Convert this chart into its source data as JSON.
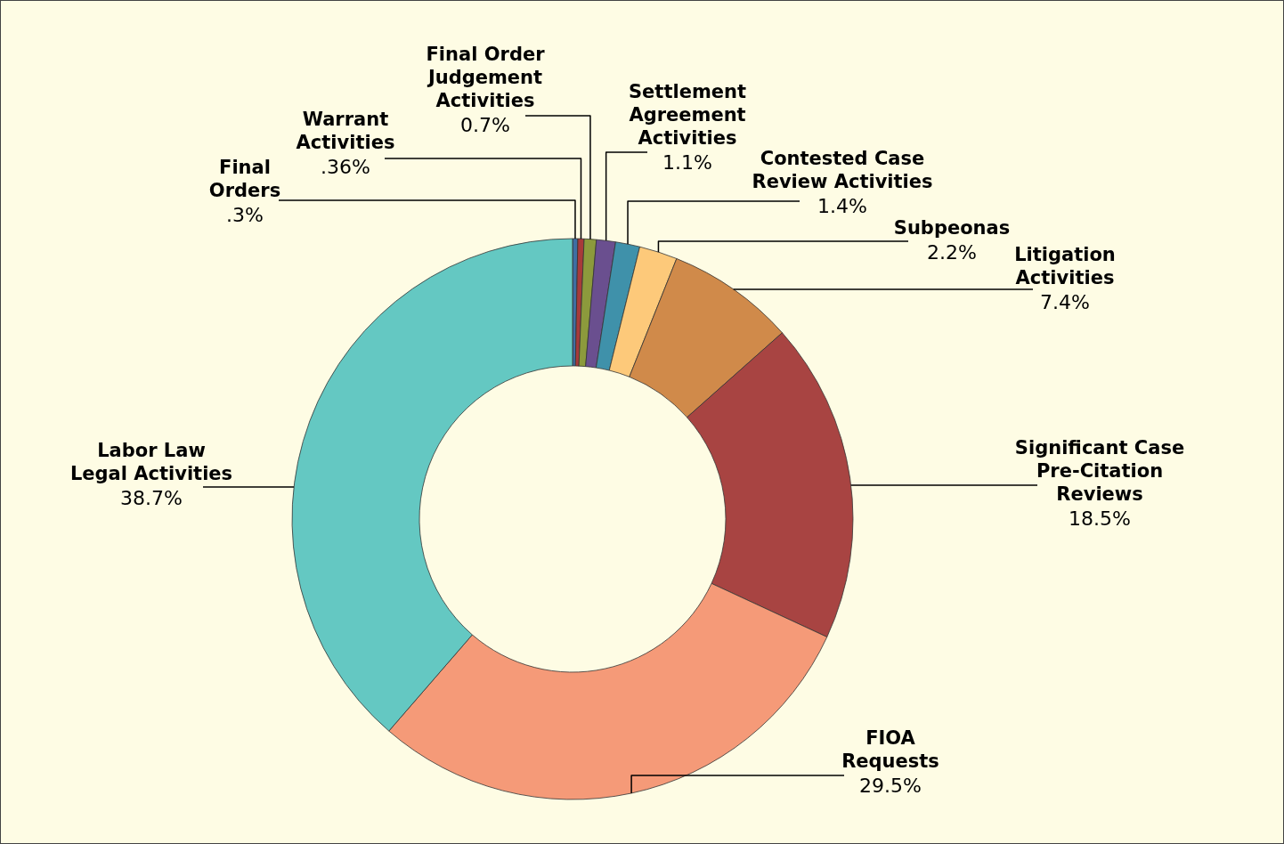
{
  "chart_data": {
    "type": "donut",
    "categories": [
      "Final Orders",
      "Warrant Activities",
      "Final Order Judgement Activities",
      "Settlement Agreement Activities",
      "Contested Case Review Activities",
      "Subpeonas",
      "Litigation Activities",
      "Significant Case Pre-Citation Reviews",
      "FIOA Requests",
      "Labor Law Legal Activities"
    ],
    "values": [
      0.3,
      0.36,
      0.7,
      1.1,
      1.4,
      2.2,
      7.4,
      18.5,
      29.5,
      38.7
    ],
    "value_labels": [
      ".3%",
      ".36%",
      "0.7%",
      "1.1%",
      "1.4%",
      "2.2%",
      "7.4%",
      "18.5%",
      "29.5%",
      "38.7%"
    ],
    "colors": [
      "#3f6fa3",
      "#a83a3a",
      "#8c9a3c",
      "#6a4f8f",
      "#3f91aa",
      "#fdc97a",
      "#d08a4a",
      "#a84442",
      "#f59a78",
      "#64c8c2"
    ]
  }
}
